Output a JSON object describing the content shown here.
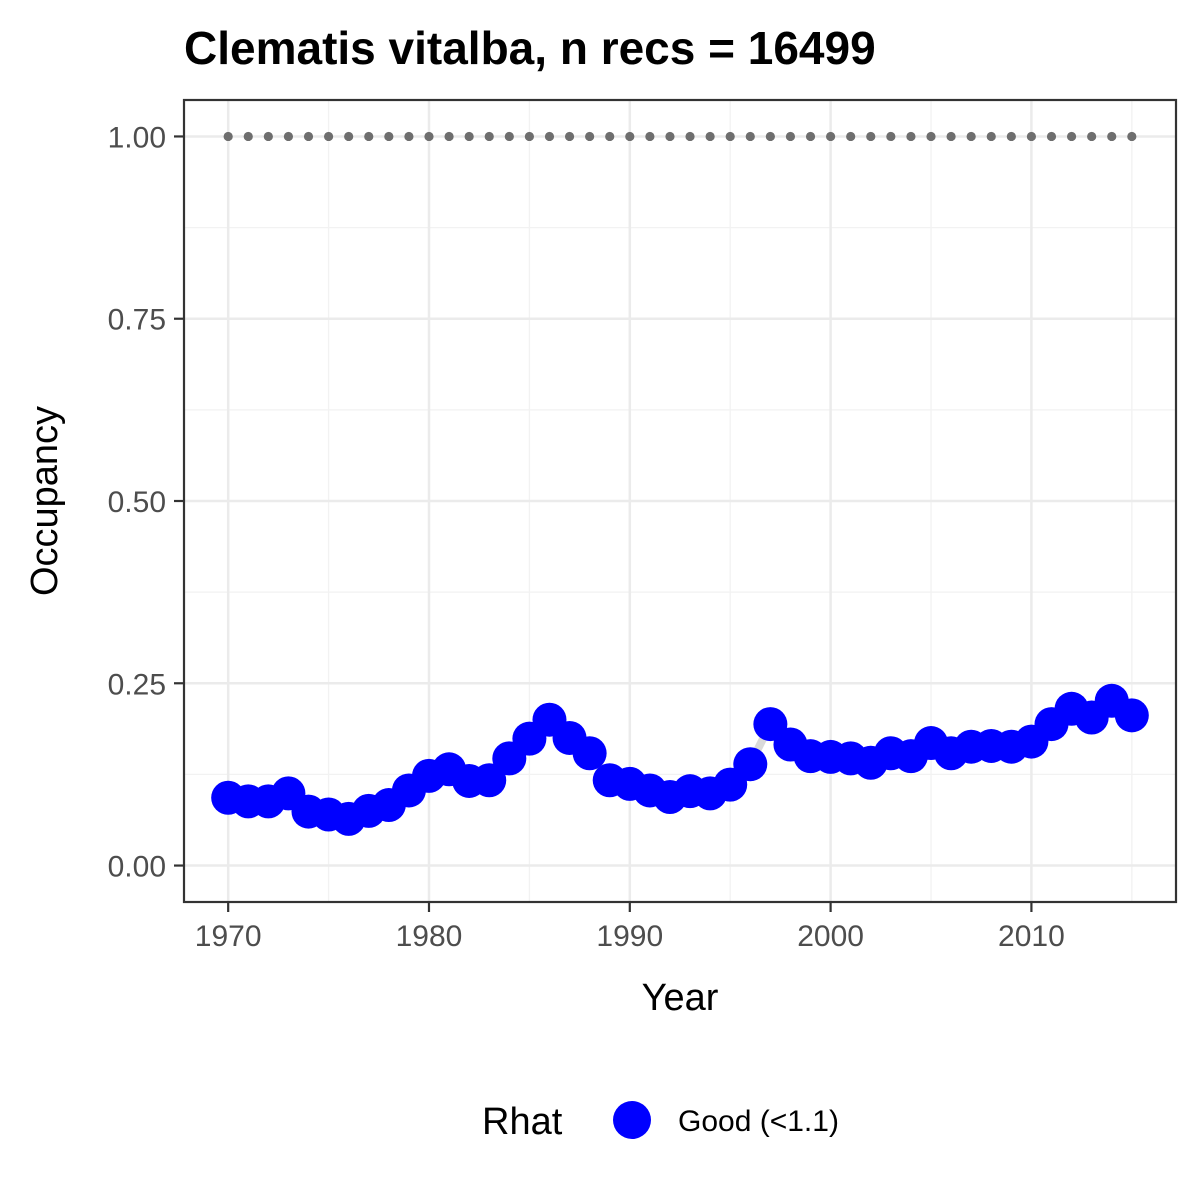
{
  "chart_data": {
    "type": "line",
    "title": "Clematis vitalba, n recs = 16499",
    "xlabel": "Year",
    "ylabel": "Occupancy",
    "xlim": [
      1967.8,
      2017.2
    ],
    "ylim": [
      -0.05,
      1.05
    ],
    "x_ticks": [
      1970,
      1980,
      1990,
      2000,
      2010
    ],
    "x_tick_labels": [
      "1970",
      "1980",
      "1990",
      "2000",
      "2010"
    ],
    "y_ticks": [
      0,
      0.25,
      0.5,
      0.75,
      1.0
    ],
    "y_tick_labels": [
      "0.00",
      "0.25",
      "0.50",
      "0.75",
      "1.00"
    ],
    "grid": true,
    "legend": {
      "title": "Rhat",
      "position": "bottom",
      "entries": [
        {
          "label": "Good (<1.1)",
          "color": "#0000ff"
        }
      ]
    },
    "series": [
      {
        "name": "Good (<1.1)",
        "color": "#0000ff",
        "x": [
          1970,
          1971,
          1972,
          1973,
          1974,
          1975,
          1976,
          1977,
          1978,
          1979,
          1980,
          1981,
          1982,
          1983,
          1984,
          1985,
          1986,
          1987,
          1988,
          1989,
          1990,
          1991,
          1992,
          1993,
          1994,
          1995,
          1996,
          1997,
          1998,
          1999,
          2000,
          2001,
          2002,
          2003,
          2004,
          2005,
          2006,
          2007,
          2008,
          2009,
          2010,
          2011,
          2012,
          2013,
          2014,
          2015
        ],
        "y": [
          0.093,
          0.088,
          0.088,
          0.099,
          0.074,
          0.07,
          0.064,
          0.075,
          0.083,
          0.103,
          0.123,
          0.132,
          0.116,
          0.117,
          0.147,
          0.174,
          0.2,
          0.175,
          0.154,
          0.117,
          0.112,
          0.103,
          0.094,
          0.102,
          0.099,
          0.111,
          0.139,
          0.194,
          0.166,
          0.15,
          0.149,
          0.147,
          0.141,
          0.154,
          0.15,
          0.168,
          0.154,
          0.163,
          0.164,
          0.163,
          0.17,
          0.194,
          0.215,
          0.203,
          0.226,
          0.206
        ]
      },
      {
        "name": "",
        "style": "dotted",
        "color": "#6e6e6e",
        "x": [
          1970,
          1971,
          1972,
          1973,
          1974,
          1975,
          1976,
          1977,
          1978,
          1979,
          1980,
          1981,
          1982,
          1983,
          1984,
          1985,
          1986,
          1987,
          1988,
          1989,
          1990,
          1991,
          1992,
          1993,
          1994,
          1995,
          1996,
          1997,
          1998,
          1999,
          2000,
          2001,
          2002,
          2003,
          2004,
          2005,
          2006,
          2007,
          2008,
          2009,
          2010,
          2011,
          2012,
          2013,
          2014,
          2015
        ],
        "y": [
          1,
          1,
          1,
          1,
          1,
          1,
          1,
          1,
          1,
          1,
          1,
          1,
          1,
          1,
          1,
          1,
          1,
          1,
          1,
          1,
          1,
          1,
          1,
          1,
          1,
          1,
          1,
          1,
          1,
          1,
          1,
          1,
          1,
          1,
          1,
          1,
          1,
          1,
          1,
          1,
          1,
          1,
          1,
          1,
          1,
          1
        ]
      }
    ]
  }
}
